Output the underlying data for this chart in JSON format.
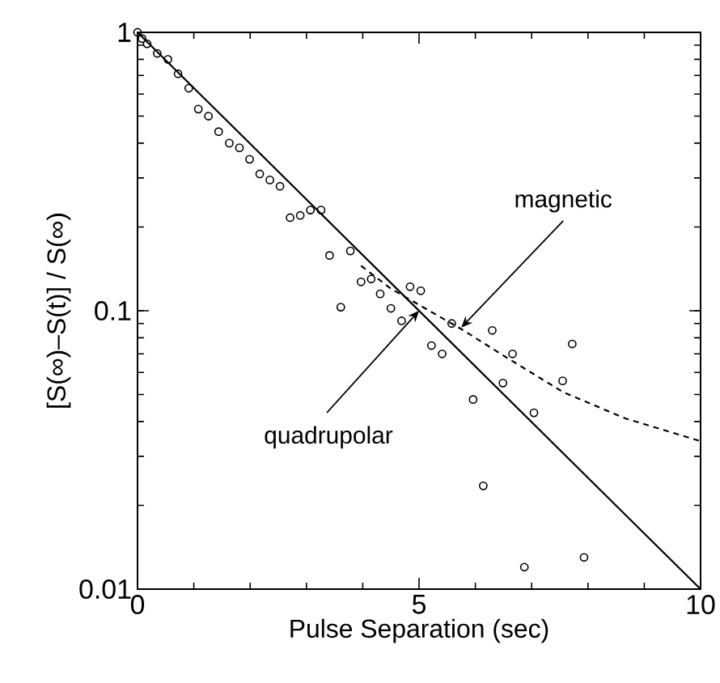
{
  "chart_data": {
    "type": "scatter",
    "xlabel": "Pulse Separation (sec)",
    "ylabel": "[S(∞)–S(t)] / S(∞)",
    "log": "y",
    "xlim": [
      0,
      10
    ],
    "ylim": [
      0.01,
      1
    ],
    "xticks": [
      0,
      5,
      10
    ],
    "yticks": [
      0.01,
      0.1,
      1
    ],
    "series": [
      {
        "marker": "circle",
        "color": "#000000",
        "x": [
          0,
          0.08,
          0.17,
          0.35,
          0.54,
          0.72,
          0.91,
          1.08,
          1.26,
          1.44,
          1.63,
          1.81,
          1.99,
          2.17,
          2.35,
          2.53,
          2.71,
          2.89,
          3.07,
          3.26,
          3.41,
          3.61,
          3.78,
          3.97,
          4.15,
          4.31,
          4.5,
          4.69,
          4.84,
          5.03,
          5.22,
          5.41,
          5.58,
          5.96,
          6.14,
          6.3,
          6.49,
          6.66,
          6.87,
          7.04,
          7.55,
          7.72,
          7.93
        ],
        "values": [
          1,
          0.95,
          0.91,
          0.84,
          0.8,
          0.71,
          0.63,
          0.53,
          0.5,
          0.44,
          0.4,
          0.385,
          0.35,
          0.31,
          0.295,
          0.28,
          0.216,
          0.22,
          0.23,
          0.23,
          0.158,
          0.103,
          0.164,
          0.127,
          0.13,
          0.115,
          0.102,
          0.092,
          0.122,
          0.118,
          0.075,
          0.07,
          0.09,
          0.048,
          0.0235,
          0.085,
          0.055,
          0.07,
          0.012,
          0.043,
          0.056,
          0.076,
          0.013
        ]
      },
      {
        "type": "line",
        "line_style": "solid",
        "color": "#000000",
        "x": [
          0,
          10
        ],
        "values": [
          1,
          0.01
        ]
      },
      {
        "type": "line",
        "line_style": "dashed",
        "color": "#000000",
        "x": [
          3.97,
          4.5,
          5.0,
          5.79,
          6.5,
          7.56,
          8.67,
          10
        ],
        "values": [
          0.145,
          0.12,
          0.105,
          0.085,
          0.069,
          0.051,
          0.041,
          0.034
        ]
      }
    ],
    "annotations": [
      {
        "text": "magnetic",
        "x": 5.75,
        "y": 0.087
      },
      {
        "text": "quadrupolar",
        "x": 5,
        "y": 0.1
      }
    ]
  }
}
